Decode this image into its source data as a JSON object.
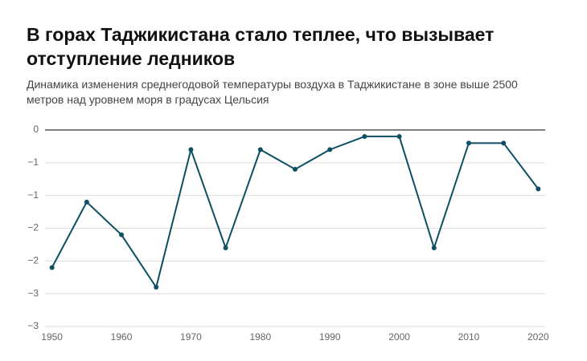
{
  "chart_data": {
    "type": "line",
    "title": "В горах Таджикистана стало теплее, что вызывает отступление ледников",
    "subtitle": "Динамика изменения среднегодовой температуры воздуха в Таджикистане в зоне выше 2500 метров над уровнем моря в градусах Цельсия",
    "x": [
      1950,
      1955,
      1960,
      1965,
      1970,
      1975,
      1980,
      1985,
      1990,
      1995,
      2000,
      2005,
      2010,
      2015,
      2020
    ],
    "series": [
      {
        "color": "#0d4f63",
        "values": [
          -2.1,
          -1.1,
          -1.6,
          -2.4,
          -0.3,
          -1.8,
          -0.3,
          -0.6,
          -0.3,
          -0.1,
          -0.1,
          -1.8,
          -0.2,
          -0.2,
          -0.9
        ]
      }
    ],
    "xlim": [
      1949,
      2021
    ],
    "xticks": [
      1950,
      1960,
      1970,
      1980,
      1990,
      2000,
      2010,
      2020
    ],
    "ylim": [
      -3,
      0
    ],
    "yticks": [
      0,
      {
        "value": -0.5,
        "label": "−1"
      },
      {
        "value": -1,
        "label": "−1"
      },
      {
        "value": -1.5,
        "label": "−2"
      },
      {
        "value": -2,
        "label": "−2"
      },
      {
        "value": -2.5,
        "label": "−3"
      },
      {
        "value": -3,
        "label": "−3"
      }
    ],
    "grid": true
  }
}
